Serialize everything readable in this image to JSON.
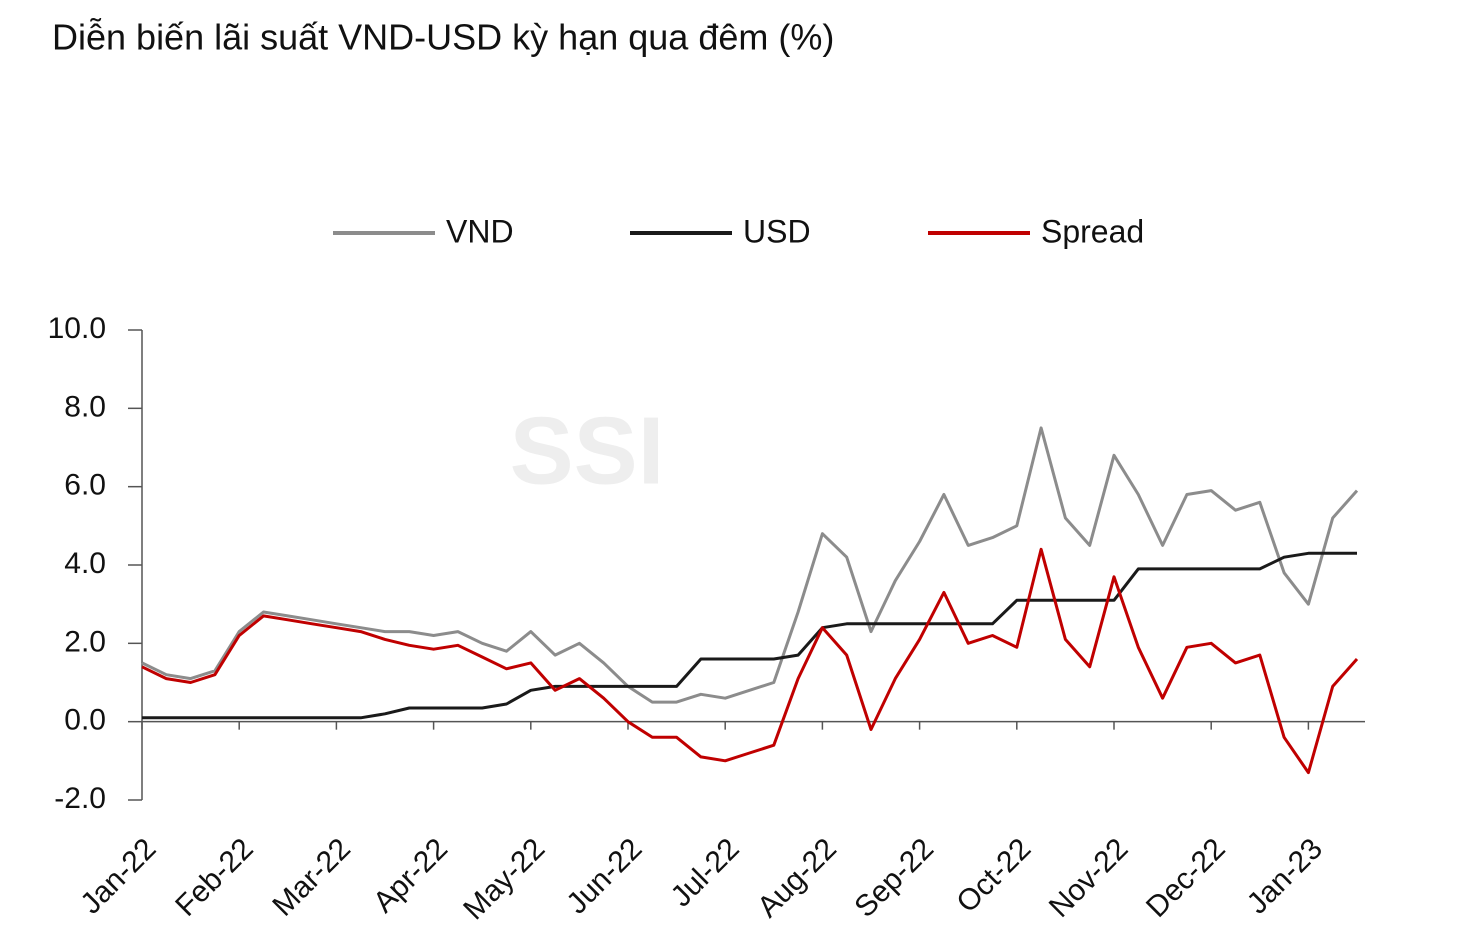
{
  "chart_data": {
    "type": "line",
    "title": "Diễn biến lãi suất VND-USD kỳ hạn qua đêm (%)",
    "watermark": "SSI",
    "categories": [
      "Jan-22",
      null,
      null,
      null,
      "Feb-22",
      null,
      null,
      null,
      "Mar-22",
      null,
      null,
      null,
      "Apr-22",
      null,
      null,
      null,
      "May-22",
      null,
      null,
      null,
      "Jun-22",
      null,
      null,
      null,
      "Jul-22",
      null,
      null,
      null,
      "Aug-22",
      null,
      null,
      null,
      "Sep-22",
      null,
      null,
      null,
      "Oct-22",
      null,
      null,
      null,
      "Nov-22",
      null,
      null,
      null,
      "Dec-22",
      null,
      null,
      null,
      "Jan-23",
      null,
      null
    ],
    "series": [
      {
        "name": "VND",
        "color": "#8c8c8c",
        "values": [
          1.5,
          1.2,
          1.1,
          1.3,
          2.3,
          2.8,
          2.7,
          2.6,
          2.5,
          2.4,
          2.3,
          2.3,
          2.2,
          2.3,
          2.0,
          1.8,
          2.3,
          1.7,
          2.0,
          1.5,
          0.9,
          0.5,
          0.5,
          0.7,
          0.6,
          0.8,
          1.0,
          2.8,
          4.8,
          4.2,
          2.3,
          3.6,
          4.6,
          5.8,
          4.5,
          4.7,
          5.0,
          7.5,
          5.2,
          4.5,
          6.8,
          5.8,
          4.5,
          5.8,
          5.9,
          5.4,
          5.6,
          3.8,
          3.0,
          5.2,
          5.9
        ]
      },
      {
        "name": "USD",
        "color": "#1a1a1a",
        "values": [
          0.1,
          0.1,
          0.1,
          0.1,
          0.1,
          0.1,
          0.1,
          0.1,
          0.1,
          0.1,
          0.2,
          0.35,
          0.35,
          0.35,
          0.35,
          0.45,
          0.8,
          0.9,
          0.9,
          0.9,
          0.9,
          0.9,
          0.9,
          1.6,
          1.6,
          1.6,
          1.6,
          1.7,
          2.4,
          2.5,
          2.5,
          2.5,
          2.5,
          2.5,
          2.5,
          2.5,
          3.1,
          3.1,
          3.1,
          3.1,
          3.1,
          3.9,
          3.9,
          3.9,
          3.9,
          3.9,
          3.9,
          4.2,
          4.3,
          4.3,
          4.3
        ]
      },
      {
        "name": "Spread",
        "color": "#c00000",
        "values": [
          1.4,
          1.1,
          1.0,
          1.2,
          2.2,
          2.7,
          2.6,
          2.5,
          2.4,
          2.3,
          2.1,
          1.95,
          1.85,
          1.95,
          1.65,
          1.35,
          1.5,
          0.8,
          1.1,
          0.6,
          0.0,
          -0.4,
          -0.4,
          -0.9,
          -1.0,
          -0.8,
          -0.6,
          1.1,
          2.4,
          1.7,
          -0.2,
          1.1,
          2.1,
          3.3,
          2.0,
          2.2,
          1.9,
          4.4,
          2.1,
          1.4,
          3.7,
          1.9,
          0.6,
          1.9,
          2.0,
          1.5,
          1.7,
          -0.4,
          -1.3,
          0.9,
          1.6
        ]
      }
    ],
    "ylim": [
      -2,
      10
    ],
    "yticks": [
      {
        "value": -2,
        "label": "-2.0"
      },
      {
        "value": 0,
        "label": "0.0"
      },
      {
        "value": 2,
        "label": "2.0"
      },
      {
        "value": 4,
        "label": "4.0"
      },
      {
        "value": 6,
        "label": "6.0"
      },
      {
        "value": 8,
        "label": "8.0"
      },
      {
        "value": 10,
        "label": "10.0"
      }
    ],
    "legend": "top",
    "grid": false
  }
}
